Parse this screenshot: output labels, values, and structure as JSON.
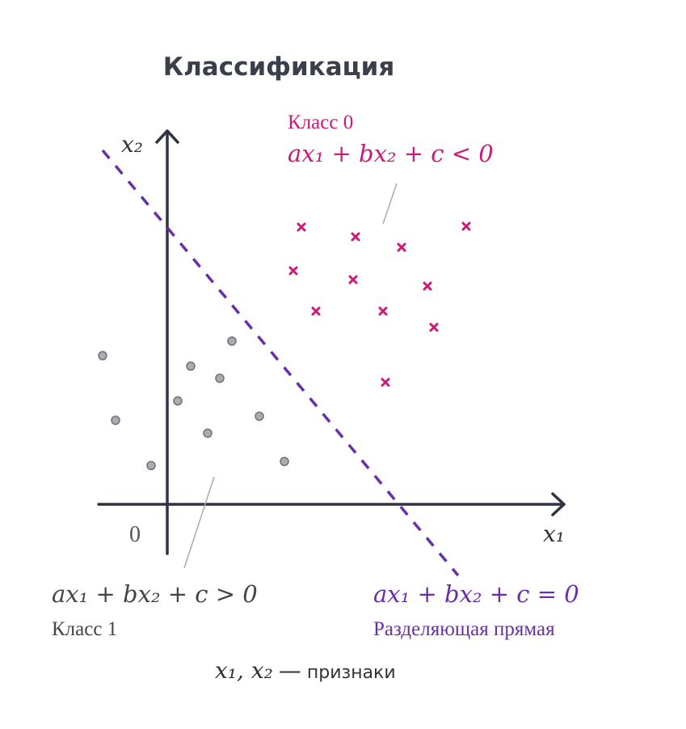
{
  "header": {
    "title": "Классификация"
  },
  "axes": {
    "x_label": "x₁",
    "y_label": "x₂",
    "origin": "0"
  },
  "class0": {
    "name": "Класс 0",
    "formula": "ax₁ + bx₂ + c < 0"
  },
  "class1": {
    "name": "Класс 1",
    "formula": "ax₁ + bx₂ + c > 0"
  },
  "boundary": {
    "name": "Разделяющая прямая",
    "formula": "ax₁ + bx₂ + c = 0"
  },
  "footer": {
    "features": "x₁, x₂",
    "dash": "—",
    "text": "признаки"
  }
}
